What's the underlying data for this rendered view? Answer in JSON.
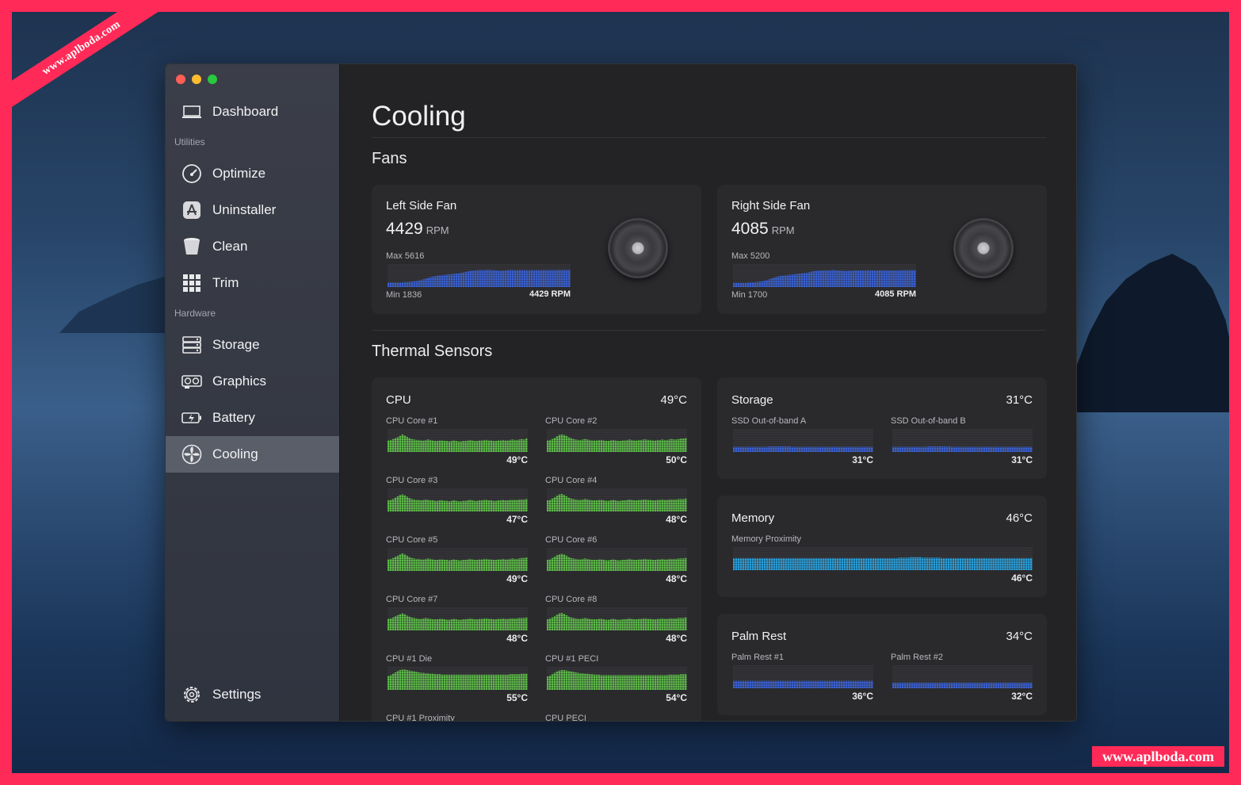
{
  "watermark": "www.aplboda.com",
  "sidebar": {
    "dashboard": "Dashboard",
    "utilities_heading": "Utilities",
    "optimize": "Optimize",
    "uninstaller": "Uninstaller",
    "clean": "Clean",
    "trim": "Trim",
    "hardware_heading": "Hardware",
    "storage": "Storage",
    "graphics": "Graphics",
    "battery": "Battery",
    "cooling": "Cooling",
    "settings": "Settings",
    "active_item": "Cooling"
  },
  "page": {
    "title": "Cooling",
    "fans_heading": "Fans",
    "thermal_heading": "Thermal Sensors"
  },
  "fans": [
    {
      "name": "Left Side Fan",
      "rpm": "4429",
      "unit": "RPM",
      "max": "Max 5616",
      "min": "Min 1836",
      "current": "4429 RPM",
      "history": [
        1900,
        1900,
        1900,
        1900,
        1900,
        1900,
        1950,
        2000,
        2000,
        2050,
        2100,
        2150,
        2200,
        2300,
        2400,
        2550,
        2700,
        2850,
        3000,
        3100,
        3200,
        3300,
        3350,
        3400,
        3450,
        3500,
        3550,
        3600,
        3650,
        3700,
        3750,
        3850,
        3950,
        4050,
        4150,
        4250,
        4300,
        4350,
        4400,
        4400,
        4400,
        4400,
        4450,
        4450,
        4400,
        4400,
        4350,
        4300,
        4300,
        4350,
        4350,
        4400,
        4400,
        4400,
        4400,
        4400,
        4400,
        4400,
        4400,
        4400,
        4400,
        4400,
        4400,
        4400,
        4400,
        4400,
        4400,
        4400,
        4400,
        4400,
        4400,
        4400,
        4429,
        4429,
        4429,
        4429,
        4429,
        4429
      ]
    },
    {
      "name": "Right Side Fan",
      "rpm": "4085",
      "unit": "RPM",
      "max": "Max 5200",
      "min": "Min 1700",
      "current": "4085 RPM",
      "history": [
        1750,
        1750,
        1750,
        1750,
        1750,
        1750,
        1800,
        1850,
        1850,
        1900,
        1950,
        2000,
        2050,
        2150,
        2250,
        2400,
        2550,
        2700,
        2850,
        2950,
        3050,
        3100,
        3150,
        3200,
        3250,
        3300,
        3350,
        3400,
        3450,
        3500,
        3550,
        3600,
        3700,
        3800,
        3900,
        3950,
        4000,
        4050,
        4050,
        4050,
        4050,
        4050,
        4100,
        4100,
        4050,
        4050,
        4000,
        3950,
        3950,
        4000,
        4000,
        4050,
        4050,
        4050,
        4050,
        4050,
        4050,
        4050,
        4050,
        4050,
        4050,
        4050,
        4050,
        4050,
        4050,
        4050,
        4050,
        4050,
        4050,
        4050,
        4050,
        4050,
        4085,
        4085,
        4085,
        4085,
        4085,
        4085
      ]
    }
  ],
  "cpu": {
    "title": "CPU",
    "temp": "49°C",
    "sensors": [
      {
        "label": "CPU Core #1",
        "value": "49°C",
        "history": [
          45,
          46,
          48,
          50,
          52,
          55,
          58,
          56,
          53,
          50,
          48,
          47,
          46,
          46,
          45,
          45,
          46,
          47,
          46,
          45,
          44,
          44,
          45,
          45,
          44,
          44,
          43,
          44,
          45,
          44,
          43,
          43,
          44,
          44,
          45,
          46,
          45,
          44,
          44,
          45,
          45,
          46,
          46,
          45,
          45,
          44,
          44,
          45,
          45,
          46,
          45,
          45,
          46,
          47,
          46,
          46,
          47,
          48,
          47,
          49
        ]
      },
      {
        "label": "CPU Core #2",
        "value": "50°C",
        "history": [
          45,
          46,
          48,
          51,
          54,
          57,
          58,
          57,
          55,
          52,
          50,
          48,
          47,
          46,
          46,
          47,
          48,
          47,
          46,
          45,
          45,
          45,
          46,
          46,
          45,
          44,
          44,
          45,
          46,
          45,
          44,
          44,
          45,
          45,
          46,
          47,
          46,
          45,
          45,
          46,
          46,
          47,
          47,
          46,
          46,
          45,
          45,
          46,
          46,
          47,
          46,
          46,
          47,
          48,
          47,
          47,
          48,
          49,
          49,
          50
        ]
      },
      {
        "label": "CPU Core #3",
        "value": "47°C",
        "history": [
          44,
          45,
          47,
          50,
          53,
          56,
          57,
          55,
          52,
          49,
          47,
          46,
          45,
          45,
          44,
          45,
          46,
          45,
          44,
          44,
          43,
          43,
          44,
          44,
          43,
          43,
          42,
          43,
          44,
          43,
          42,
          42,
          43,
          43,
          44,
          45,
          44,
          43,
          43,
          44,
          44,
          45,
          45,
          44,
          44,
          43,
          43,
          44,
          44,
          45,
          44,
          44,
          45,
          45,
          45,
          45,
          46,
          46,
          46,
          47
        ]
      },
      {
        "label": "CPU Core #4",
        "value": "48°C",
        "history": [
          44,
          45,
          48,
          51,
          54,
          57,
          58,
          56,
          53,
          50,
          48,
          47,
          46,
          45,
          45,
          46,
          47,
          46,
          45,
          44,
          44,
          44,
          45,
          45,
          44,
          43,
          43,
          44,
          45,
          44,
          43,
          43,
          44,
          44,
          45,
          46,
          45,
          44,
          44,
          45,
          45,
          46,
          46,
          45,
          45,
          44,
          44,
          45,
          45,
          46,
          45,
          45,
          46,
          46,
          46,
          46,
          47,
          47,
          47,
          48
        ]
      },
      {
        "label": "CPU Core #5",
        "value": "49°C",
        "history": [
          45,
          46,
          48,
          51,
          53,
          56,
          58,
          56,
          53,
          50,
          48,
          47,
          46,
          46,
          45,
          45,
          46,
          47,
          46,
          45,
          44,
          44,
          45,
          45,
          44,
          44,
          43,
          44,
          45,
          44,
          43,
          43,
          44,
          44,
          45,
          46,
          45,
          44,
          44,
          45,
          45,
          46,
          46,
          45,
          45,
          44,
          44,
          45,
          45,
          46,
          45,
          45,
          46,
          47,
          46,
          46,
          47,
          48,
          48,
          49
        ]
      },
      {
        "label": "CPU Core #6",
        "value": "48°C",
        "history": [
          44,
          45,
          48,
          51,
          54,
          56,
          57,
          56,
          53,
          50,
          48,
          47,
          46,
          45,
          45,
          46,
          47,
          46,
          45,
          44,
          44,
          44,
          45,
          45,
          44,
          43,
          43,
          44,
          45,
          44,
          43,
          43,
          44,
          44,
          45,
          46,
          45,
          44,
          44,
          45,
          45,
          46,
          46,
          45,
          45,
          44,
          44,
          45,
          45,
          46,
          45,
          45,
          46,
          46,
          46,
          46,
          47,
          47,
          47,
          48
        ]
      },
      {
        "label": "CPU Core #7",
        "value": "48°C",
        "history": [
          45,
          46,
          48,
          51,
          53,
          55,
          57,
          55,
          52,
          50,
          48,
          47,
          46,
          45,
          45,
          46,
          47,
          46,
          45,
          44,
          44,
          44,
          45,
          45,
          44,
          43,
          43,
          44,
          45,
          44,
          43,
          43,
          44,
          44,
          45,
          46,
          45,
          44,
          44,
          45,
          45,
          46,
          46,
          45,
          45,
          44,
          44,
          45,
          45,
          46,
          45,
          45,
          46,
          46,
          46,
          46,
          47,
          47,
          47,
          48
        ]
      },
      {
        "label": "CPU Core #8",
        "value": "48°C",
        "history": [
          44,
          46,
          48,
          51,
          54,
          57,
          58,
          56,
          53,
          50,
          48,
          47,
          46,
          45,
          45,
          46,
          47,
          46,
          45,
          44,
          44,
          44,
          45,
          45,
          44,
          43,
          43,
          44,
          45,
          44,
          43,
          43,
          44,
          44,
          45,
          46,
          45,
          44,
          44,
          45,
          45,
          46,
          46,
          45,
          45,
          44,
          44,
          45,
          45,
          46,
          45,
          45,
          46,
          46,
          46,
          46,
          47,
          47,
          47,
          48
        ]
      },
      {
        "label": "CPU #1 Die",
        "value": "55°C",
        "history": [
          50,
          52,
          55,
          58,
          61,
          63,
          64,
          64,
          63,
          62,
          61,
          60,
          59,
          58,
          57,
          57,
          56,
          56,
          55,
          55,
          54,
          54,
          54,
          53,
          53,
          53,
          53,
          53,
          53,
          53,
          53,
          53,
          53,
          53,
          53,
          53,
          53,
          53,
          53,
          53,
          53,
          53,
          53,
          53,
          53,
          53,
          53,
          53,
          53,
          53,
          53,
          53,
          54,
          54,
          54,
          54,
          54,
          55,
          55,
          55
        ]
      },
      {
        "label": "CPU #1 PECI",
        "value": "54°C",
        "history": [
          49,
          51,
          54,
          57,
          60,
          62,
          63,
          63,
          62,
          61,
          60,
          59,
          58,
          57,
          56,
          56,
          55,
          55,
          54,
          54,
          53,
          53,
          53,
          52,
          52,
          52,
          52,
          52,
          52,
          52,
          52,
          52,
          52,
          52,
          52,
          52,
          52,
          52,
          52,
          52,
          52,
          52,
          52,
          52,
          52,
          52,
          52,
          52,
          52,
          52,
          52,
          52,
          53,
          53,
          53,
          53,
          53,
          54,
          54,
          54
        ]
      },
      {
        "label": "CPU #1 Proximity",
        "value": "",
        "history": []
      },
      {
        "label": "CPU PECI",
        "value": "",
        "history": []
      }
    ]
  },
  "storage": {
    "title": "Storage",
    "temp": "31°C",
    "sensors": [
      {
        "label": "SSD Out-of-band A",
        "value": "31°C",
        "history": [
          31,
          31,
          31,
          31,
          31,
          31,
          31,
          31,
          31,
          31,
          31,
          31,
          31,
          31,
          31,
          32,
          32,
          32,
          32,
          32,
          32,
          32,
          32,
          32,
          32,
          31,
          31,
          31,
          31,
          31,
          31,
          31,
          31,
          31,
          31,
          31,
          31,
          31,
          31,
          31,
          31,
          31,
          31,
          31,
          31,
          31,
          31,
          31,
          31,
          31,
          31,
          31,
          31,
          31,
          31,
          31,
          31,
          31,
          31,
          31
        ]
      },
      {
        "label": "SSD Out-of-band B",
        "value": "31°C",
        "history": [
          31,
          31,
          31,
          31,
          31,
          31,
          31,
          31,
          31,
          31,
          31,
          31,
          31,
          31,
          31,
          32,
          32,
          32,
          32,
          32,
          32,
          32,
          32,
          32,
          32,
          31,
          31,
          31,
          31,
          31,
          31,
          31,
          31,
          31,
          31,
          31,
          31,
          31,
          31,
          31,
          31,
          31,
          31,
          31,
          31,
          31,
          31,
          31,
          31,
          31,
          31,
          31,
          31,
          31,
          31,
          31,
          31,
          31,
          31,
          31
        ]
      }
    ]
  },
  "memory": {
    "title": "Memory",
    "temp": "46°C",
    "sensors": [
      {
        "label": "Memory Proximity",
        "value": "46°C",
        "history": [
          46,
          46,
          46,
          46,
          46,
          46,
          46,
          46,
          46,
          46,
          46,
          46,
          46,
          46,
          46,
          46,
          46,
          46,
          46,
          46,
          46,
          46,
          46,
          46,
          46,
          46,
          46,
          46,
          46,
          46,
          46,
          46,
          46,
          46,
          46,
          46,
          46,
          46,
          46,
          46,
          46,
          46,
          46,
          46,
          46,
          46,
          46,
          46,
          46,
          46,
          46,
          46,
          46,
          46,
          46,
          46,
          46,
          46,
          46,
          46,
          46,
          46,
          46,
          46,
          46,
          46,
          46,
          46,
          46,
          46,
          47,
          47,
          47,
          47,
          47,
          48,
          48,
          48,
          48,
          48,
          47,
          47,
          47,
          47,
          47,
          47,
          47,
          47,
          46,
          46,
          46,
          46,
          46,
          46,
          46,
          46,
          46,
          46,
          46,
          46,
          46,
          46,
          46,
          46,
          46,
          46,
          46,
          46,
          46,
          46,
          46,
          46,
          46,
          46,
          46,
          46,
          46,
          46,
          46,
          46,
          46,
          46,
          46,
          46,
          46,
          46,
          46
        ]
      }
    ]
  },
  "palm_rest": {
    "title": "Palm Rest",
    "temp": "34°C",
    "sensors": [
      {
        "label": "Palm Rest #1",
        "value": "36°C",
        "history": [
          36,
          36,
          36,
          36,
          36,
          36,
          36,
          36,
          36,
          36,
          36,
          36,
          36,
          36,
          36,
          36,
          36,
          36,
          36,
          36,
          36,
          36,
          36,
          36,
          36,
          36,
          36,
          36,
          36,
          36,
          36,
          36,
          36,
          36,
          36,
          36,
          36,
          36,
          36,
          36,
          36,
          36,
          36,
          36,
          36,
          36,
          36,
          36,
          36,
          36,
          36,
          36,
          36,
          36,
          36,
          36,
          36,
          36,
          36,
          36
        ]
      },
      {
        "label": "Palm Rest #2",
        "value": "32°C",
        "history": [
          32,
          32,
          32,
          32,
          32,
          32,
          32,
          32,
          32,
          32,
          32,
          32,
          32,
          32,
          32,
          32,
          32,
          32,
          32,
          32,
          32,
          32,
          32,
          32,
          32,
          32,
          32,
          32,
          32,
          32,
          32,
          32,
          32,
          32,
          32,
          32,
          32,
          32,
          32,
          32,
          32,
          32,
          32,
          32,
          32,
          32,
          32,
          32,
          32,
          32,
          32,
          32,
          32,
          32,
          32,
          32,
          32,
          32,
          32,
          32
        ]
      }
    ]
  },
  "colors": {
    "fan_bar": "#3b63d8",
    "cpu_bar": "#5fbf4a",
    "storage_bar": "#3b63d8",
    "memory_bar": "#2aa3e0",
    "palm_bar": "#3b63d8",
    "active_nav": "#5a5e69",
    "traffic_red": "#ff5f57",
    "traffic_yellow": "#febc2e",
    "traffic_green": "#28c840"
  }
}
